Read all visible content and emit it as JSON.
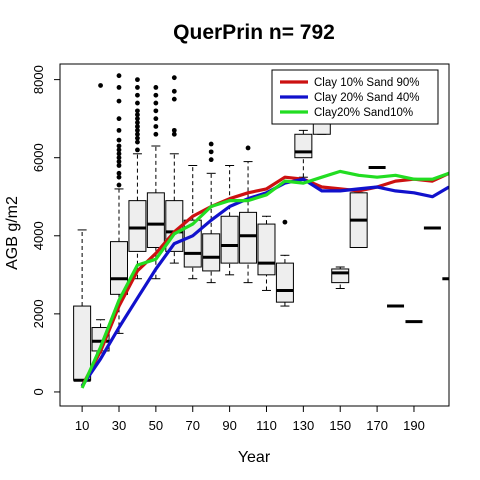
{
  "chart_data": {
    "type": "box",
    "title": "QuerPrin n= 792",
    "xlabel": "Year",
    "ylabel": "AGB g/m2",
    "xlim": [
      -2,
      209
    ],
    "ylim": [
      -360,
      8400
    ],
    "x_ticks": [
      10,
      30,
      50,
      70,
      90,
      110,
      130,
      150,
      170,
      190
    ],
    "x_tick_labels": [
      "10",
      "30",
      "50",
      "70",
      "90",
      "110",
      "130",
      "150",
      "170",
      "190"
    ],
    "y_ticks": [
      0,
      2000,
      4000,
      6000,
      8000
    ],
    "y_tick_labels": [
      "0",
      "2000",
      "4000",
      "6000",
      "8000"
    ],
    "boxes": [
      {
        "x": 10,
        "min": 300,
        "q1": 300,
        "median": 300,
        "q3": 2200,
        "max": 4150,
        "outliers": []
      },
      {
        "x": 20,
        "min": 1000,
        "q1": 1050,
        "median": 1300,
        "q3": 1650,
        "max": 1850,
        "outliers": [
          7850
        ]
      },
      {
        "x": 30,
        "min": 1500,
        "q1": 2500,
        "median": 2900,
        "q3": 3850,
        "max": 5200,
        "outliers": [
          5300,
          5500,
          5600,
          5800,
          5900,
          6000,
          6100,
          6200,
          6300,
          6450,
          6700,
          7000,
          7450,
          7800,
          8100
        ]
      },
      {
        "x": 40,
        "min": 2900,
        "q1": 3600,
        "median": 4200,
        "q3": 4900,
        "max": 6100,
        "outliers": [
          6200,
          6400,
          6500,
          6600,
          6700,
          6800,
          6900,
          7000,
          7100,
          7200,
          7400,
          7600,
          7800,
          8000
        ]
      },
      {
        "x": 50,
        "min": 2900,
        "q1": 3700,
        "median": 4300,
        "q3": 5100,
        "max": 6300,
        "outliers": [
          6600,
          6800,
          7000,
          7200,
          7400,
          7600,
          7800
        ]
      },
      {
        "x": 60,
        "min": 3300,
        "q1": 3600,
        "median": 4100,
        "q3": 4900,
        "max": 6100,
        "outliers": [
          6600,
          6700,
          7500,
          7700,
          8050
        ]
      },
      {
        "x": 70,
        "min": 2900,
        "q1": 3200,
        "median": 3550,
        "q3": 4400,
        "max": 5800,
        "outliers": []
      },
      {
        "x": 80,
        "min": 2800,
        "q1": 3100,
        "median": 3450,
        "q3": 4050,
        "max": 5600,
        "outliers": [
          5950,
          6150,
          6350
        ]
      },
      {
        "x": 90,
        "min": 3000,
        "q1": 3300,
        "median": 3750,
        "q3": 4500,
        "max": 5800,
        "outliers": []
      },
      {
        "x": 100,
        "min": 2800,
        "q1": 3300,
        "median": 4000,
        "q3": 4600,
        "max": 5900,
        "outliers": [
          6250
        ]
      },
      {
        "x": 110,
        "min": 2600,
        "q1": 3000,
        "median": 3300,
        "q3": 4300,
        "max": 4500,
        "outliers": []
      },
      {
        "x": 120,
        "min": 2200,
        "q1": 2300,
        "median": 2600,
        "q3": 3300,
        "max": 3500,
        "outliers": [
          4350
        ]
      },
      {
        "x": 130,
        "min": 5500,
        "q1": 6000,
        "median": 6150,
        "q3": 6600,
        "max": 6700,
        "outliers": []
      },
      {
        "x": 140,
        "min": 6600,
        "q1": 6600,
        "median": 6900,
        "q3": 7500,
        "max": 7600,
        "outliers": []
      },
      {
        "x": 150,
        "min": 2650,
        "q1": 2800,
        "median": 3050,
        "q3": 3150,
        "max": 3200,
        "outliers": []
      },
      {
        "x": 160,
        "min": 3700,
        "q1": 3700,
        "median": 4400,
        "q3": 5100,
        "max": 5100,
        "outliers": []
      },
      {
        "x": 170,
        "min": 5750,
        "q1": 5750,
        "median": 5750,
        "q3": 5750,
        "max": 5750,
        "outliers": []
      },
      {
        "x": 180,
        "min": 2200,
        "q1": 2200,
        "median": 2200,
        "q3": 2200,
        "max": 2200,
        "outliers": []
      },
      {
        "x": 190,
        "min": 1800,
        "q1": 1800,
        "median": 1800,
        "q3": 1800,
        "max": 1800,
        "outliers": []
      },
      {
        "x": 200,
        "min": 4200,
        "q1": 4200,
        "median": 4200,
        "q3": 4200,
        "max": 4200,
        "outliers": []
      },
      {
        "x": 210,
        "min": 2900,
        "q1": 2900,
        "median": 2900,
        "q3": 2900,
        "max": 2900,
        "outliers": []
      }
    ],
    "series": [
      {
        "name": "Clay 10% Sand 90%",
        "color": "#cc1111",
        "x": [
          10,
          20,
          30,
          40,
          50,
          60,
          70,
          80,
          90,
          100,
          110,
          120,
          130,
          140,
          150,
          160,
          170,
          180,
          190,
          200,
          209
        ],
        "y": [
          150,
          1050,
          2200,
          3100,
          3550,
          4100,
          4500,
          4750,
          4950,
          5100,
          5200,
          5500,
          5450,
          5250,
          5200,
          5150,
          5250,
          5400,
          5450,
          5400,
          5600
        ]
      },
      {
        "name": "Clay 20% Sand 40%",
        "color": "#1111cc",
        "x": [
          10,
          20,
          30,
          40,
          50,
          60,
          70,
          80,
          90,
          100,
          110,
          120,
          130,
          140,
          150,
          160,
          170,
          180,
          190,
          200,
          209
        ],
        "y": [
          150,
          850,
          1650,
          2400,
          3150,
          3800,
          4000,
          4400,
          4750,
          4950,
          5100,
          5350,
          5450,
          5150,
          5150,
          5200,
          5250,
          5150,
          5100,
          5000,
          5250
        ]
      },
      {
        "name": "Clay20% Sand10%",
        "color": "#22dd22",
        "x": [
          10,
          20,
          30,
          40,
          50,
          60,
          70,
          80,
          90,
          100,
          110,
          120,
          130,
          140,
          150,
          160,
          170,
          180,
          190,
          200,
          209
        ],
        "y": [
          100,
          1150,
          2350,
          3250,
          3400,
          4050,
          4300,
          4750,
          4900,
          4900,
          5050,
          5400,
          5350,
          5500,
          5650,
          5550,
          5500,
          5550,
          5450,
          5450,
          5600
        ]
      }
    ],
    "legend_position": "top-right",
    "grid": false
  }
}
